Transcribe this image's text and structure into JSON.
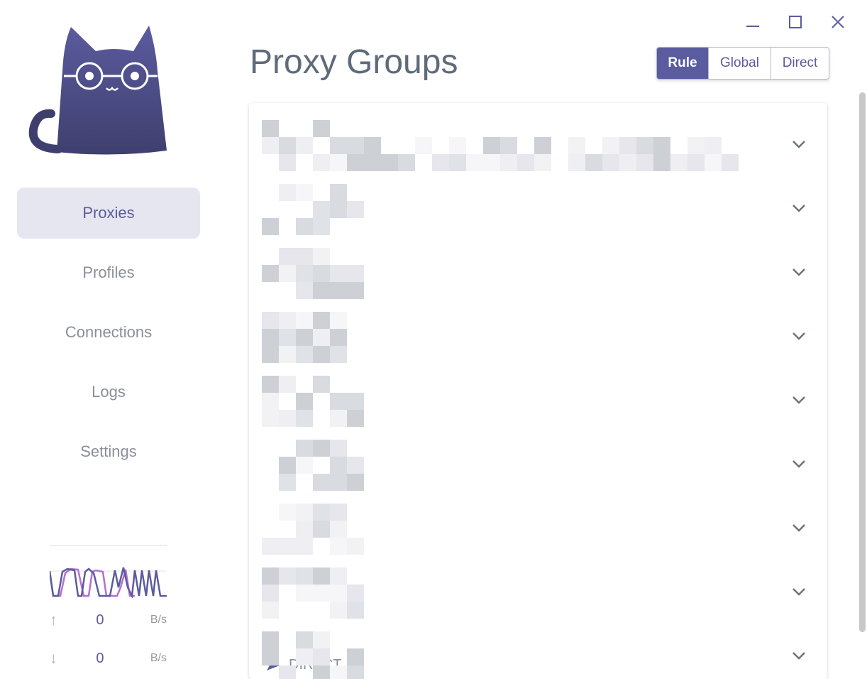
{
  "window": {
    "minimize": "minimize",
    "maximize": "maximize",
    "close": "close"
  },
  "sidebar": {
    "items": [
      {
        "label": "Proxies",
        "active": true
      },
      {
        "label": "Profiles"
      },
      {
        "label": "Connections"
      },
      {
        "label": "Logs"
      },
      {
        "label": "Settings"
      }
    ]
  },
  "traffic": {
    "upload_value": "0",
    "upload_unit": "B/s",
    "download_value": "0",
    "download_unit": "B/s"
  },
  "main": {
    "title": "Proxy Groups",
    "modes": [
      "Rule",
      "Global",
      "Direct"
    ],
    "selected_mode": "Rule",
    "group_count": 9,
    "last_group_selected": "DIRECT"
  },
  "colors": {
    "accent": "#5b5b9f",
    "upload_line": "#b56fd0",
    "download_line": "#5b5b9f"
  }
}
